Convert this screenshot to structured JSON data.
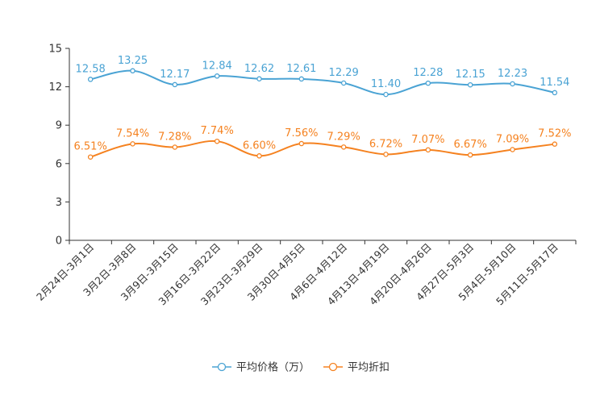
{
  "chart_data": {
    "type": "line",
    "categories": [
      "2月24日-3月1日",
      "3月2日-3月8日",
      "3月9日-3月15日",
      "3月16日-3月22日",
      "3月23日-3月29日",
      "3月30日-4月5日",
      "4月6日-4月12日",
      "4月13日-4月19日",
      "4月20日-4月26日",
      "4月27日-5月3日",
      "5月4日-5月10日",
      "5月11日-5月17日"
    ],
    "yticks": [
      "0",
      "3",
      "6",
      "9",
      "12",
      "15"
    ],
    "ylim": [
      0,
      15
    ],
    "series": [
      {
        "name": "平均价格（万）",
        "color": "#4aa3d4",
        "values": [
          12.58,
          13.25,
          12.17,
          12.84,
          12.62,
          12.61,
          12.29,
          11.4,
          12.28,
          12.15,
          12.23,
          11.54
        ],
        "labels": [
          "12.58",
          "13.25",
          "12.17",
          "12.84",
          "12.62",
          "12.61",
          "12.29",
          "11.40",
          "12.28",
          "12.15",
          "12.23",
          "11.54"
        ]
      },
      {
        "name": "平均折扣",
        "color": "#f58220",
        "values": [
          6.51,
          7.54,
          7.28,
          7.74,
          6.6,
          7.56,
          7.29,
          6.72,
          7.07,
          6.67,
          7.09,
          7.52
        ],
        "labels": [
          "6.51%",
          "7.54%",
          "7.28%",
          "7.74%",
          "6.60%",
          "7.56%",
          "7.29%",
          "6.72%",
          "7.07%",
          "6.67%",
          "7.09%",
          "7.52%"
        ]
      }
    ],
    "legend_position": "bottom"
  }
}
